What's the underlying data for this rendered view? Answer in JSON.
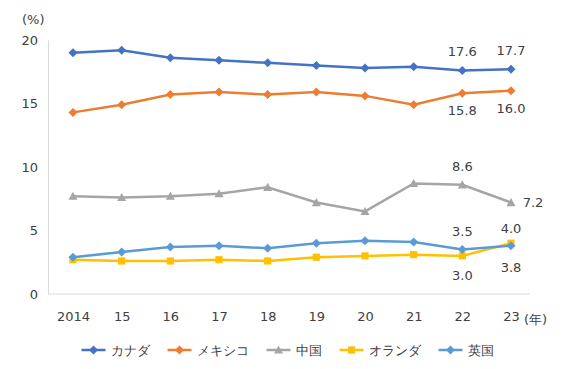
{
  "chart_data": {
    "type": "line",
    "y_label": "(%)",
    "x_label": "(年)",
    "categories": [
      "2014",
      "15",
      "16",
      "17",
      "18",
      "19",
      "20",
      "21",
      "22",
      "23"
    ],
    "ylim": [
      0,
      20
    ],
    "yticks": [
      0,
      5,
      10,
      15,
      20
    ],
    "grid": false,
    "legend": "bottom",
    "data_labels": true,
    "series": [
      {
        "name": "カナダ",
        "color": "#4472c4",
        "marker": "diamond",
        "values": [
          19.0,
          19.2,
          18.6,
          18.4,
          18.2,
          18.0,
          17.8,
          17.9,
          17.6,
          17.7
        ],
        "value_labels": [
          null,
          null,
          null,
          null,
          null,
          null,
          null,
          null,
          "17.6",
          "17.7"
        ]
      },
      {
        "name": "メキシコ",
        "color": "#ed7d31",
        "marker": "diamond",
        "values": [
          14.3,
          14.9,
          15.7,
          15.9,
          15.7,
          15.9,
          15.6,
          14.9,
          15.8,
          16.0
        ],
        "value_labels": [
          null,
          null,
          null,
          null,
          null,
          null,
          null,
          null,
          "15.8",
          "16.0"
        ]
      },
      {
        "name": "中国",
        "color": "#a5a5a5",
        "marker": "triangle",
        "values": [
          7.7,
          7.6,
          7.7,
          7.9,
          8.4,
          7.2,
          6.5,
          8.7,
          8.6,
          7.2
        ],
        "value_labels": [
          null,
          null,
          null,
          null,
          null,
          null,
          null,
          null,
          "8.6",
          "7.2"
        ]
      },
      {
        "name": "オランダ",
        "color": "#ffc000",
        "marker": "square",
        "values": [
          2.7,
          2.6,
          2.6,
          2.7,
          2.6,
          2.9,
          3.0,
          3.1,
          3.0,
          4.0
        ],
        "value_labels": [
          null,
          null,
          null,
          null,
          null,
          null,
          null,
          null,
          "3.0",
          "4.0"
        ]
      },
      {
        "name": "英国",
        "color": "#5b9bd5",
        "marker": "diamond",
        "values": [
          2.9,
          3.3,
          3.7,
          3.8,
          3.6,
          4.0,
          4.2,
          4.1,
          3.5,
          3.8
        ],
        "value_labels": [
          null,
          null,
          null,
          null,
          null,
          null,
          null,
          null,
          "3.5",
          "3.8"
        ]
      }
    ]
  }
}
